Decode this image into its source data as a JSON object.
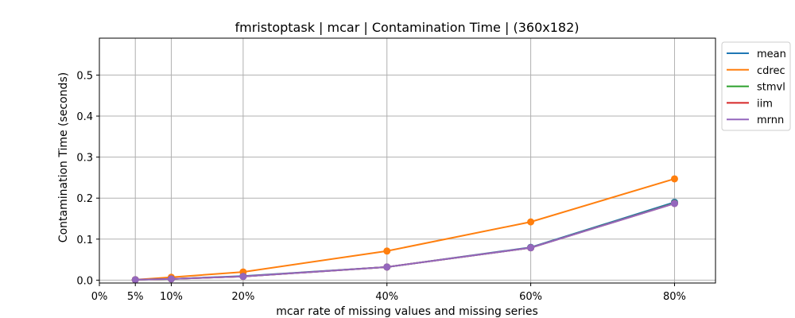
{
  "chart_data": {
    "type": "line",
    "title": "fmristoptask | mcar | Contamination Time | (360x182)",
    "xlabel": "mcar rate of missing values and missing series",
    "ylabel": "Contamination Time (seconds)",
    "x": [
      0.05,
      0.1,
      0.2,
      0.4,
      0.6,
      0.8
    ],
    "xticks": [
      0.0,
      0.05,
      0.1,
      0.2,
      0.4,
      0.6,
      0.8
    ],
    "xtick_labels": [
      "0%",
      "5%",
      "10%",
      "20%",
      "40%",
      "60%",
      "80%"
    ],
    "xlim": [
      0.0,
      0.857
    ],
    "yticks": [
      0.0,
      0.1,
      0.2,
      0.3,
      0.4,
      0.5
    ],
    "ytick_labels": [
      "0.0",
      "0.1",
      "0.2",
      "0.3",
      "0.4",
      "0.5"
    ],
    "ylim": [
      -0.007,
      0.59
    ],
    "grid": true,
    "legend_position": "outside-top-right",
    "series": [
      {
        "name": "mean",
        "color": "#1f77b4",
        "values": [
          0.001,
          0.003,
          0.01,
          0.032,
          0.08,
          0.19
        ]
      },
      {
        "name": "cdrec",
        "color": "#ff7f0e",
        "values": [
          0.001,
          0.007,
          0.02,
          0.071,
          0.142,
          0.247
        ]
      },
      {
        "name": "stmvl",
        "color": "#2ca02c",
        "values": [
          0.001,
          0.003,
          0.009,
          0.032,
          0.079,
          0.188
        ]
      },
      {
        "name": "iim",
        "color": "#d62728",
        "values": [
          0.001,
          0.003,
          0.009,
          0.032,
          0.079,
          0.187
        ]
      },
      {
        "name": "mrnn",
        "color": "#9467bd",
        "values": [
          0.001,
          0.003,
          0.009,
          0.032,
          0.079,
          0.187
        ]
      }
    ]
  }
}
